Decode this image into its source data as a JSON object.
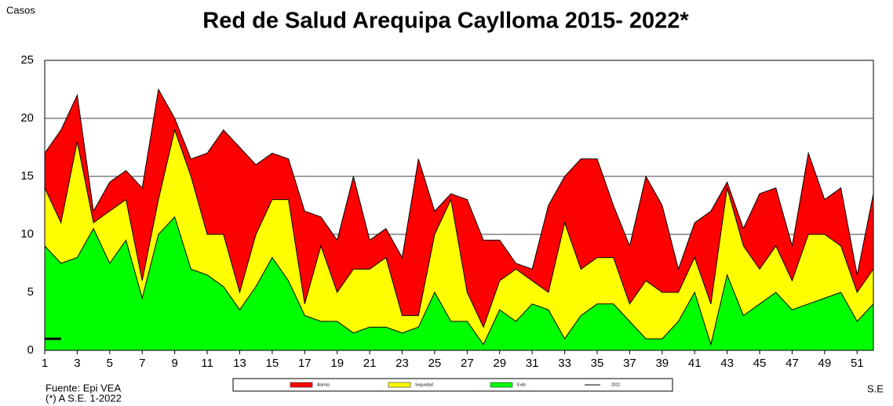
{
  "chart_data": {
    "type": "area",
    "title": "Red  de Salud Arequipa Caylloma 2015- 2022*",
    "y_label": "Casos",
    "x_label": "S.E",
    "source": "Fuente: Epi VEA",
    "note": "(*) A S.E.  1-2022",
    "x": [
      1,
      2,
      3,
      4,
      5,
      6,
      7,
      8,
      9,
      10,
      11,
      12,
      13,
      14,
      15,
      16,
      17,
      18,
      19,
      20,
      21,
      22,
      23,
      24,
      25,
      26,
      27,
      28,
      29,
      30,
      31,
      32,
      33,
      34,
      35,
      36,
      37,
      38,
      39,
      40,
      41,
      42,
      43,
      44,
      45,
      46,
      47,
      48,
      49,
      50,
      51,
      52
    ],
    "xlim": [
      1,
      52
    ],
    "xticks": [
      1,
      3,
      5,
      7,
      9,
      11,
      13,
      15,
      17,
      19,
      21,
      23,
      25,
      27,
      29,
      31,
      33,
      35,
      37,
      39,
      41,
      43,
      45,
      47,
      49,
      51
    ],
    "ylim": [
      0,
      25
    ],
    "yticks": [
      0,
      5,
      10,
      15,
      20,
      25
    ],
    "grid": true,
    "series": [
      {
        "name": "Alarma",
        "color": "#ff0000",
        "values": [
          17,
          19,
          22,
          12,
          14.5,
          15.5,
          14,
          22.5,
          20,
          16.5,
          17,
          19,
          17.5,
          16,
          17,
          16.5,
          12,
          11.5,
          9.5,
          15,
          9.5,
          10.5,
          8,
          16.5,
          12,
          13.5,
          13,
          9.5,
          9.5,
          7.5,
          7,
          12.5,
          15,
          16.5,
          16.5,
          12.5,
          9,
          15,
          12.5,
          7,
          11,
          12,
          14.5,
          10.5,
          13.5,
          14,
          9,
          17,
          13,
          14,
          6.5,
          13.5
        ]
      },
      {
        "name": "Seguridad",
        "color": "#ffff00",
        "values": [
          14,
          11,
          18,
          11,
          12,
          13,
          6,
          13,
          19,
          15,
          10,
          10,
          5,
          10,
          13,
          13,
          4,
          9,
          5,
          7,
          7,
          8,
          3,
          3,
          10,
          13,
          5,
          2,
          6,
          7,
          6,
          5,
          11,
          7,
          8,
          8,
          4,
          6,
          5,
          5,
          8,
          4,
          14,
          9,
          7,
          9,
          6,
          10,
          10,
          9,
          5,
          7
        ]
      },
      {
        "name": "Exito",
        "color": "#00ff00",
        "values": [
          9,
          7.5,
          8,
          10.5,
          7.5,
          9.5,
          4.5,
          10,
          11.5,
          7,
          6.5,
          5.5,
          3.5,
          5.5,
          8,
          6,
          3,
          2.5,
          2.5,
          1.5,
          2,
          2,
          1.5,
          2,
          5,
          2.5,
          2.5,
          0.5,
          3.5,
          2.5,
          4,
          3.5,
          1,
          3,
          4,
          4,
          2.5,
          1,
          1,
          2.5,
          5,
          0.5,
          6.5,
          3,
          4,
          5,
          3.5,
          4,
          4.5,
          5,
          2.5,
          4
        ]
      },
      {
        "name": "2022",
        "color": "#000000",
        "line": true,
        "values": [
          1,
          1,
          null,
          null,
          null,
          null,
          null,
          null,
          null,
          null,
          null,
          null,
          null,
          null,
          null,
          null,
          null,
          null,
          null,
          null,
          null,
          null,
          null,
          null,
          null,
          null,
          null,
          null,
          null,
          null,
          null,
          null,
          null,
          null,
          null,
          null,
          null,
          null,
          null,
          null,
          null,
          null,
          null,
          null,
          null,
          null,
          null,
          null,
          null,
          null,
          null,
          null
        ]
      }
    ]
  }
}
